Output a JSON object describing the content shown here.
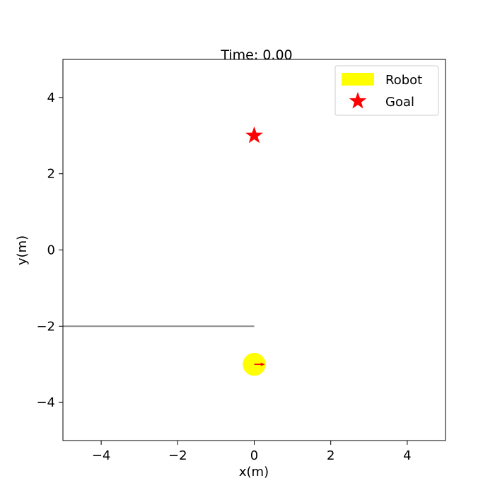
{
  "chart_data": {
    "type": "scatter",
    "title": "Time: 0.00",
    "xlabel": "x(m)",
    "ylabel": "y(m)",
    "xlim": [
      -5,
      5
    ],
    "ylim": [
      -5,
      5
    ],
    "grid": false,
    "x_ticks": [
      -4,
      -2,
      0,
      2,
      4
    ],
    "y_ticks": [
      -4,
      -2,
      0,
      2,
      4
    ],
    "x_tick_labels": [
      "−4",
      "−2",
      "0",
      "2",
      "4"
    ],
    "y_tick_labels": [
      "−4",
      "−2",
      "0",
      "2",
      "4"
    ],
    "legend_position": "top-right",
    "legend": [
      {
        "label": "Robot",
        "marker": "rectangle",
        "color": "#ffff00"
      },
      {
        "label": "Goal",
        "marker": "star",
        "color": "#ff0000"
      }
    ],
    "robot": {
      "x": 0.0,
      "y": -3.0,
      "radius": 0.3,
      "color": "#ffff00"
    },
    "heading_arrow": {
      "x": 0.0,
      "y": -3.0,
      "dx": 0.28,
      "dy": 0.0,
      "color": "#ff0000"
    },
    "goal": {
      "x": 0.0,
      "y": 3.0,
      "color": "#ff0000"
    },
    "wall": {
      "x": [
        -5.0,
        0.0
      ],
      "y": [
        -2.0,
        -2.0
      ],
      "color": "#808080"
    }
  }
}
